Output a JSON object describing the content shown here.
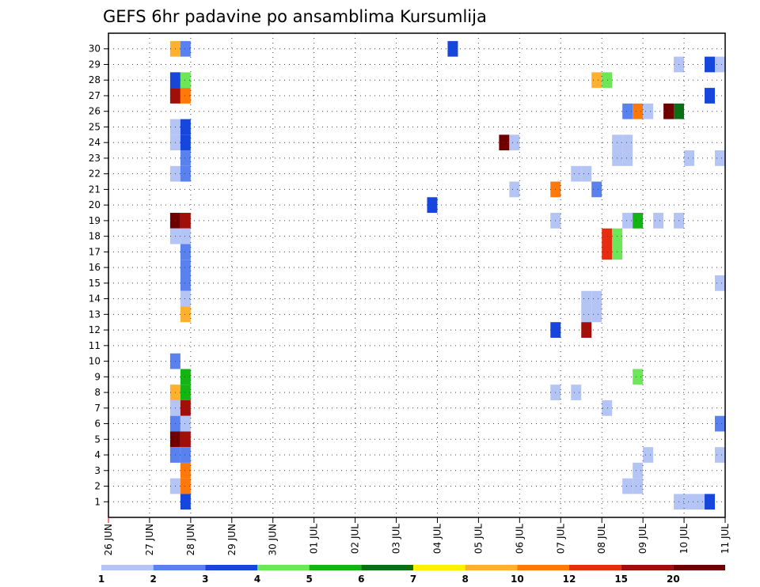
{
  "chart_data": {
    "type": "heatmap",
    "title": "GEFS 6hr padavine po ansamblima Kursumlija",
    "x_tick_labels": [
      "26 JUN",
      "27 JUN",
      "28 JUN",
      "29 JUN",
      "30 JUN",
      "01 JUL",
      "02 JUL",
      "03 JUL",
      "04 JUL",
      "05 JUL",
      "06 JUL",
      "07 JUL",
      "08 JUL",
      "09 JUL",
      "10 JUL",
      "11 JUL"
    ],
    "y_tick_labels": [
      "1",
      "2",
      "3",
      "4",
      "5",
      "6",
      "7",
      "8",
      "9",
      "10",
      "11",
      "12",
      "13",
      "14",
      "15",
      "16",
      "17",
      "18",
      "19",
      "20",
      "21",
      "22",
      "23",
      "24",
      "25",
      "26",
      "27",
      "28",
      "29",
      "30"
    ],
    "xlim": [
      "26 JUN 00",
      "11 JUL 00"
    ],
    "ylim": [
      0,
      31
    ],
    "grid": true,
    "legend": {
      "placement": "bottom",
      "levels": [
        "1",
        "2",
        "3",
        "4",
        "5",
        "6",
        "7",
        "8",
        "10",
        "12",
        "15",
        "20"
      ],
      "colors": [
        "#b4c4f4",
        "#5a82ef",
        "#1646dc",
        "#6ee65a",
        "#14b414",
        "#0a6e14",
        "#fff000",
        "#ffb02e",
        "#ff780a",
        "#e62d0f",
        "#a00f0a",
        "#6e0000"
      ]
    },
    "cells": [
      {
        "member": 30,
        "time": "27 JUN 12",
        "value": 8
      },
      {
        "member": 30,
        "time": "27 JUN 18",
        "value": 2
      },
      {
        "member": 30,
        "time": "04 JUL 06",
        "value": 3
      },
      {
        "member": 29,
        "time": "09 JUL 18",
        "value": 1
      },
      {
        "member": 29,
        "time": "10 JUL 12",
        "value": 3
      },
      {
        "member": 29,
        "time": "10 JUL 18",
        "value": 1
      },
      {
        "member": 28,
        "time": "27 JUN 12",
        "value": 3
      },
      {
        "member": 28,
        "time": "27 JUN 18",
        "value": 4
      },
      {
        "member": 28,
        "time": "07 JUL 18",
        "value": 8
      },
      {
        "member": 28,
        "time": "08 JUL 00",
        "value": 4
      },
      {
        "member": 27,
        "time": "27 JUN 12",
        "value": 15
      },
      {
        "member": 27,
        "time": "27 JUN 18",
        "value": 10
      },
      {
        "member": 27,
        "time": "10 JUL 12",
        "value": 3
      },
      {
        "member": 26,
        "time": "08 JUL 12",
        "value": 2
      },
      {
        "member": 26,
        "time": "08 JUL 18",
        "value": 10
      },
      {
        "member": 26,
        "time": "09 JUL 00",
        "value": 1
      },
      {
        "member": 26,
        "time": "09 JUL 12",
        "value": 20
      },
      {
        "member": 26,
        "time": "09 JUL 18",
        "value": 6
      },
      {
        "member": 25,
        "time": "27 JUN 12",
        "value": 1
      },
      {
        "member": 25,
        "time": "27 JUN 18",
        "value": 3
      },
      {
        "member": 24,
        "time": "27 JUN 12",
        "value": 1
      },
      {
        "member": 24,
        "time": "27 JUN 18",
        "value": 3
      },
      {
        "member": 24,
        "time": "05 JUL 12",
        "value": 20
      },
      {
        "member": 24,
        "time": "05 JUL 18",
        "value": 1
      },
      {
        "member": 23,
        "time": "27 JUN 18",
        "value": 2
      },
      {
        "member": 23,
        "time": "08 JUL 06",
        "value": 1
      },
      {
        "member": 23,
        "time": "08 JUL 12",
        "value": 1
      },
      {
        "member": 23,
        "time": "10 JUL 00",
        "value": 1
      },
      {
        "member": 23,
        "time": "10 JUL 18",
        "value": 1
      },
      {
        "member": 24,
        "time": "08 JUL 06",
        "value": 1
      },
      {
        "member": 24,
        "time": "08 JUL 12",
        "value": 1
      },
      {
        "member": 22,
        "time": "27 JUN 12",
        "value": 1
      },
      {
        "member": 22,
        "time": "27 JUN 18",
        "value": 2
      },
      {
        "member": 22,
        "time": "07 JUL 06",
        "value": 1
      },
      {
        "member": 22,
        "time": "07 JUL 12",
        "value": 1
      },
      {
        "member": 21,
        "time": "05 JUL 18",
        "value": 1
      },
      {
        "member": 21,
        "time": "06 JUL 18",
        "value": 10
      },
      {
        "member": 21,
        "time": "07 JUL 18",
        "value": 2
      },
      {
        "member": 20,
        "time": "03 JUL 18",
        "value": 3
      },
      {
        "member": 19,
        "time": "27 JUN 12",
        "value": 20
      },
      {
        "member": 19,
        "time": "27 JUN 18",
        "value": 15
      },
      {
        "member": 19,
        "time": "06 JUL 18",
        "value": 1
      },
      {
        "member": 19,
        "time": "08 JUL 12",
        "value": 1
      },
      {
        "member": 19,
        "time": "08 JUL 18",
        "value": 5
      },
      {
        "member": 19,
        "time": "09 JUL 06",
        "value": 1
      },
      {
        "member": 19,
        "time": "09 JUL 18",
        "value": 1
      },
      {
        "member": 18,
        "time": "27 JUN 12",
        "value": 1
      },
      {
        "member": 18,
        "time": "27 JUN 18",
        "value": 1
      },
      {
        "member": 18,
        "time": "08 JUL 00",
        "value": 12
      },
      {
        "member": 18,
        "time": "08 JUL 06",
        "value": 4
      },
      {
        "member": 17,
        "time": "08 JUL 00",
        "value": 12
      },
      {
        "member": 17,
        "time": "08 JUL 06",
        "value": 4
      },
      {
        "member": 17,
        "time": "27 JUN 18",
        "value": 2
      },
      {
        "member": 16,
        "time": "27 JUN 18",
        "value": 2
      },
      {
        "member": 15,
        "time": "27 JUN 18",
        "value": 2
      },
      {
        "member": 15,
        "time": "10 JUL 18",
        "value": 1
      },
      {
        "member": 14,
        "time": "27 JUN 18",
        "value": 1
      },
      {
        "member": 14,
        "time": "07 JUL 12",
        "value": 1
      },
      {
        "member": 14,
        "time": "07 JUL 18",
        "value": 1
      },
      {
        "member": 13,
        "time": "27 JUN 18",
        "value": 8
      },
      {
        "member": 13,
        "time": "07 JUL 12",
        "value": 1
      },
      {
        "member": 13,
        "time": "07 JUL 18",
        "value": 1
      },
      {
        "member": 12,
        "time": "06 JUL 18",
        "value": 3
      },
      {
        "member": 12,
        "time": "07 JUL 12",
        "value": 15
      },
      {
        "member": 10,
        "time": "27 JUN 12",
        "value": 2
      },
      {
        "member": 9,
        "time": "27 JUN 18",
        "value": 5
      },
      {
        "member": 9,
        "time": "08 JUL 18",
        "value": 4
      },
      {
        "member": 8,
        "time": "27 JUN 12",
        "value": 8
      },
      {
        "member": 8,
        "time": "27 JUN 18",
        "value": 5
      },
      {
        "member": 8,
        "time": "06 JUL 18",
        "value": 1
      },
      {
        "member": 8,
        "time": "07 JUL 06",
        "value": 1
      },
      {
        "member": 7,
        "time": "27 JUN 12",
        "value": 1
      },
      {
        "member": 7,
        "time": "27 JUN 18",
        "value": 15
      },
      {
        "member": 7,
        "time": "08 JUL 00",
        "value": 1
      },
      {
        "member": 6,
        "time": "27 JUN 12",
        "value": 2
      },
      {
        "member": 6,
        "time": "27 JUN 18",
        "value": 1
      },
      {
        "member": 6,
        "time": "10 JUL 18",
        "value": 2
      },
      {
        "member": 5,
        "time": "27 JUN 12",
        "value": 20
      },
      {
        "member": 5,
        "time": "27 JUN 18",
        "value": 15
      },
      {
        "member": 4,
        "time": "27 JUN 12",
        "value": 2
      },
      {
        "member": 4,
        "time": "27 JUN 18",
        "value": 2
      },
      {
        "member": 4,
        "time": "09 JUL 00",
        "value": 1
      },
      {
        "member": 4,
        "time": "10 JUL 18",
        "value": 1
      },
      {
        "member": 3,
        "time": "27 JUN 18",
        "value": 10
      },
      {
        "member": 3,
        "time": "08 JUL 18",
        "value": 1
      },
      {
        "member": 2,
        "time": "27 JUN 12",
        "value": 1
      },
      {
        "member": 2,
        "time": "27 JUN 18",
        "value": 10
      },
      {
        "member": 2,
        "time": "08 JUL 12",
        "value": 1
      },
      {
        "member": 2,
        "time": "08 JUL 18",
        "value": 1
      },
      {
        "member": 1,
        "time": "27 JUN 18",
        "value": 3
      },
      {
        "member": 1,
        "time": "09 JUL 18",
        "value": 1
      },
      {
        "member": 1,
        "time": "10 JUL 00",
        "value": 1
      },
      {
        "member": 1,
        "time": "10 JUL 06",
        "value": 1
      },
      {
        "member": 1,
        "time": "10 JUL 12",
        "value": 3
      }
    ]
  }
}
